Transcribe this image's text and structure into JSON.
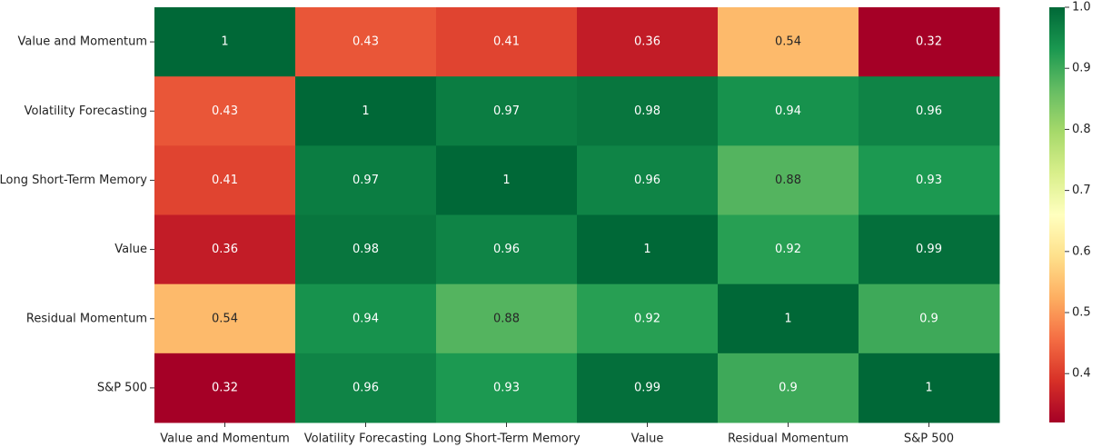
{
  "chart_data": {
    "type": "heatmap",
    "x_categories": [
      "Value and Momentum",
      "Volatility Forecasting",
      "Long Short-Term Memory",
      "Value",
      "Residual Momentum",
      "S&P 500"
    ],
    "y_categories": [
      "Value and Momentum",
      "Volatility Forecasting",
      "Long Short-Term Memory",
      "Value",
      "Residual Momentum",
      "S&P 500"
    ],
    "values": [
      [
        1,
        0.43,
        0.41,
        0.36,
        0.54,
        0.32
      ],
      [
        0.43,
        1,
        0.97,
        0.98,
        0.94,
        0.96
      ],
      [
        0.41,
        0.97,
        1,
        0.96,
        0.88,
        0.93
      ],
      [
        0.36,
        0.98,
        0.96,
        1,
        0.92,
        0.99
      ],
      [
        0.54,
        0.94,
        0.88,
        0.92,
        1,
        0.9
      ],
      [
        0.32,
        0.96,
        0.93,
        0.99,
        0.9,
        1
      ]
    ],
    "colormap": "RdYlGn",
    "zlim": [
      0.32,
      1
    ],
    "zticks": [
      0.4,
      0.5,
      0.6,
      0.7,
      0.8,
      0.9,
      {
        "value": 1.0,
        "label": "1.0"
      }
    ],
    "annotate": true
  }
}
